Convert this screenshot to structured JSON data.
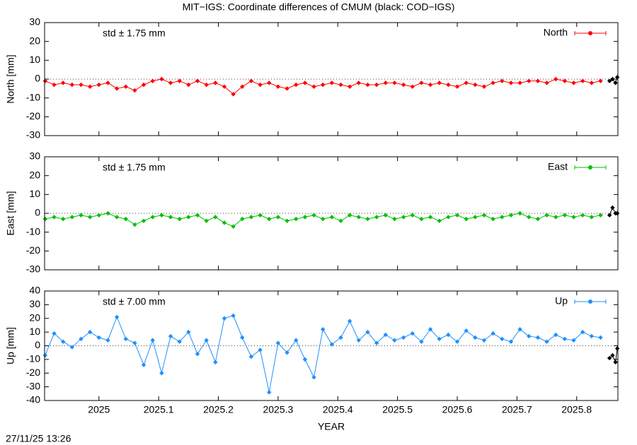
{
  "title": "MIT−IGS: Coordinate differences of CMUM (black: COD−IGS)",
  "footer": "27/11/25 13:26",
  "chart_data": [
    {
      "type": "line",
      "ylabel": "North [mm]",
      "annotation": "std ± 1.75 mm",
      "annotation_color": "#ff0000",
      "xlim": [
        2024.909,
        2025.869
      ],
      "xticks": [
        2025,
        2025.1,
        2025.2,
        2025.3,
        2025.4,
        2025.5,
        2025.6,
        2025.7,
        2025.8
      ],
      "ylim": [
        -30,
        30
      ],
      "yticks": [
        -30,
        -20,
        -10,
        0,
        10,
        20,
        30
      ],
      "zero_line": true,
      "legend": "top-right",
      "x": [
        2024.91,
        2024.925,
        2024.94,
        2024.955,
        2024.97,
        2024.985,
        2025.0,
        2025.015,
        2025.03,
        2025.045,
        2025.06,
        2025.075,
        2025.09,
        2025.105,
        2025.12,
        2025.135,
        2025.15,
        2025.165,
        2025.18,
        2025.195,
        2025.21,
        2025.225,
        2025.24,
        2025.255,
        2025.27,
        2025.285,
        2025.3,
        2025.315,
        2025.33,
        2025.345,
        2025.36,
        2025.375,
        2025.39,
        2025.405,
        2025.42,
        2025.435,
        2025.45,
        2025.465,
        2025.48,
        2025.495,
        2025.51,
        2025.525,
        2025.54,
        2025.555,
        2025.57,
        2025.585,
        2025.6,
        2025.615,
        2025.63,
        2025.645,
        2025.66,
        2025.675,
        2025.69,
        2025.705,
        2025.72,
        2025.735,
        2025.75,
        2025.765,
        2025.78,
        2025.795,
        2025.81,
        2025.825,
        2025.84
      ],
      "series": [
        {
          "name": "North",
          "color": "#ff0000",
          "values": [
            -1,
            -3,
            -2,
            -3,
            -3,
            -4,
            -3,
            -2,
            -5,
            -4,
            -6,
            -3,
            -1,
            0,
            -2,
            -1,
            -3,
            -1,
            -3,
            -2,
            -4,
            -8,
            -4,
            -1,
            -3,
            -2,
            -4,
            -5,
            -3,
            -2,
            -4,
            -3,
            -2,
            -3,
            -4,
            -2,
            -3,
            -3,
            -2,
            -2,
            -3,
            -4,
            -2,
            -3,
            -2,
            -3,
            -4,
            -2,
            -3,
            -4,
            -2,
            -1,
            -2,
            -2,
            -1,
            -1,
            -2,
            0,
            -1,
            -2,
            -1,
            -2,
            -1
          ]
        },
        {
          "color": "#000000",
          "x": [
            2025.855,
            2025.86,
            2025.865,
            2025.868
          ],
          "values": [
            -1,
            0,
            -2,
            1
          ]
        }
      ]
    },
    {
      "type": "line",
      "ylabel": "East [mm]",
      "annotation": "std ± 1.75 mm",
      "annotation_color": "#00c000",
      "xlim": [
        2024.909,
        2025.869
      ],
      "xticks": [
        2025,
        2025.1,
        2025.2,
        2025.3,
        2025.4,
        2025.5,
        2025.6,
        2025.7,
        2025.8
      ],
      "ylim": [
        -30,
        30
      ],
      "yticks": [
        -30,
        -20,
        -10,
        0,
        10,
        20,
        30
      ],
      "zero_line": true,
      "legend": "top-right",
      "x": [
        2024.91,
        2024.925,
        2024.94,
        2024.955,
        2024.97,
        2024.985,
        2025.0,
        2025.015,
        2025.03,
        2025.045,
        2025.06,
        2025.075,
        2025.09,
        2025.105,
        2025.12,
        2025.135,
        2025.15,
        2025.165,
        2025.18,
        2025.195,
        2025.21,
        2025.225,
        2025.24,
        2025.255,
        2025.27,
        2025.285,
        2025.3,
        2025.315,
        2025.33,
        2025.345,
        2025.36,
        2025.375,
        2025.39,
        2025.405,
        2025.42,
        2025.435,
        2025.45,
        2025.465,
        2025.48,
        2025.495,
        2025.51,
        2025.525,
        2025.54,
        2025.555,
        2025.57,
        2025.585,
        2025.6,
        2025.615,
        2025.63,
        2025.645,
        2025.66,
        2025.675,
        2025.69,
        2025.705,
        2025.72,
        2025.735,
        2025.75,
        2025.765,
        2025.78,
        2025.795,
        2025.81,
        2025.825,
        2025.84
      ],
      "series": [
        {
          "name": "East",
          "color": "#00c000",
          "values": [
            -3,
            -2,
            -3,
            -2,
            -1,
            -2,
            -1,
            0,
            -2,
            -3,
            -6,
            -4,
            -2,
            -1,
            -2,
            -3,
            -2,
            -1,
            -4,
            -2,
            -5,
            -7,
            -3,
            -2,
            -1,
            -3,
            -2,
            -4,
            -3,
            -2,
            -1,
            -3,
            -2,
            -4,
            -1,
            -2,
            -3,
            -2,
            -1,
            -3,
            -2,
            -1,
            -3,
            -2,
            -4,
            -2,
            -1,
            -3,
            -2,
            -1,
            -3,
            -2,
            -1,
            0,
            -2,
            -3,
            -1,
            -2,
            -1,
            -2,
            -1,
            -2,
            -1
          ]
        },
        {
          "color": "#000000",
          "x": [
            2025.855,
            2025.86,
            2025.865,
            2025.868
          ],
          "values": [
            -1,
            3,
            0,
            0
          ]
        }
      ]
    },
    {
      "type": "line",
      "ylabel": "Up [mm]",
      "xlabel": "YEAR",
      "annotation": "std ± 7.00 mm",
      "annotation_color": "#1e90ff",
      "xlim": [
        2024.909,
        2025.869
      ],
      "xticks": [
        2025,
        2025.1,
        2025.2,
        2025.3,
        2025.4,
        2025.5,
        2025.6,
        2025.7,
        2025.8
      ],
      "ylim": [
        -40,
        40
      ],
      "yticks": [
        -40,
        -30,
        -20,
        -10,
        0,
        10,
        20,
        30,
        40
      ],
      "zero_line": true,
      "legend": "top-right",
      "x": [
        2024.91,
        2024.925,
        2024.94,
        2024.955,
        2024.97,
        2024.985,
        2025.0,
        2025.015,
        2025.03,
        2025.045,
        2025.06,
        2025.075,
        2025.09,
        2025.105,
        2025.12,
        2025.135,
        2025.15,
        2025.165,
        2025.18,
        2025.195,
        2025.21,
        2025.225,
        2025.24,
        2025.255,
        2025.27,
        2025.285,
        2025.3,
        2025.315,
        2025.33,
        2025.345,
        2025.36,
        2025.375,
        2025.39,
        2025.405,
        2025.42,
        2025.435,
        2025.45,
        2025.465,
        2025.48,
        2025.495,
        2025.51,
        2025.525,
        2025.54,
        2025.555,
        2025.57,
        2025.585,
        2025.6,
        2025.615,
        2025.63,
        2025.645,
        2025.66,
        2025.675,
        2025.69,
        2025.705,
        2025.72,
        2025.735,
        2025.75,
        2025.765,
        2025.78,
        2025.795,
        2025.81,
        2025.825,
        2025.84
      ],
      "series": [
        {
          "name": "Up",
          "color": "#1e90ff",
          "values": [
            -7,
            9,
            3,
            -1,
            5,
            10,
            6,
            4,
            21,
            5,
            2,
            -14,
            4,
            -20,
            7,
            3,
            10,
            -6,
            4,
            -12,
            20,
            22,
            6,
            -8,
            -3,
            -34,
            2,
            -5,
            4,
            -10,
            -23,
            12,
            1,
            6,
            18,
            4,
            10,
            2,
            8,
            4,
            6,
            9,
            3,
            12,
            5,
            8,
            3,
            11,
            6,
            4,
            9,
            5,
            3,
            12,
            7,
            6,
            3,
            8,
            5,
            4,
            10,
            7,
            6
          ]
        },
        {
          "color": "#000000",
          "x": [
            2025.855,
            2025.86,
            2025.865,
            2025.868
          ],
          "values": [
            -9,
            -7,
            -12,
            -2
          ]
        }
      ]
    }
  ]
}
